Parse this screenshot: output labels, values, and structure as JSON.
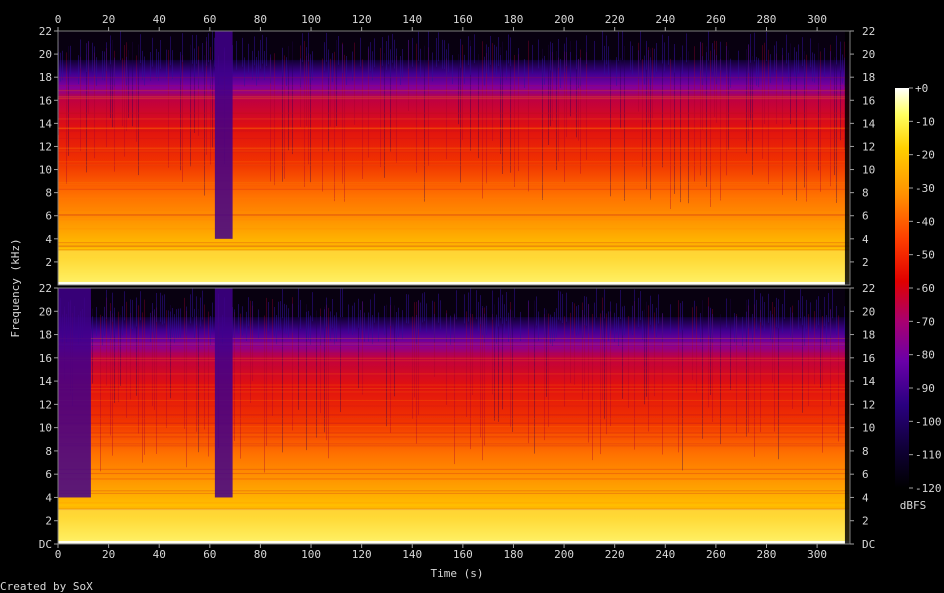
{
  "chart_data": {
    "type": "heatmap",
    "title": "",
    "xlabel": "Time (s)",
    "ylabel": "Frequency (kHz)",
    "credit": "Created by SoX",
    "x_range": [
      0,
      313
    ],
    "x_ticks": [
      0,
      20,
      40,
      60,
      80,
      100,
      120,
      140,
      160,
      180,
      200,
      220,
      240,
      260,
      280,
      300
    ],
    "channels": [
      {
        "y_range_khz": [
          0,
          22
        ],
        "y_tick_labels": [
          "2",
          "4",
          "6",
          "8",
          "10",
          "12",
          "14",
          "16",
          "18",
          "20",
          "22"
        ],
        "y_tick_values_khz": [
          2,
          4,
          6,
          8,
          10,
          12,
          14,
          16,
          18,
          20,
          22
        ],
        "spectral_ceiling_khz": 19.5,
        "quiet_segments_s": [
          [
            62,
            69
          ]
        ],
        "bright_low_band_khz": [
          0,
          3
        ]
      },
      {
        "y_range_khz": [
          0,
          22
        ],
        "y_tick_labels": [
          "DC",
          "2",
          "4",
          "6",
          "8",
          "10",
          "12",
          "14",
          "16",
          "18",
          "20",
          "22"
        ],
        "y_tick_values_khz": [
          0,
          2,
          4,
          6,
          8,
          10,
          12,
          14,
          16,
          18,
          20,
          22
        ],
        "spectral_ceiling_khz": 19.5,
        "quiet_segments_s": [
          [
            0,
            13
          ],
          [
            62,
            69
          ]
        ],
        "bright_low_band_khz": [
          0,
          3
        ]
      }
    ],
    "colorbar": {
      "label": "dBFS",
      "range": [
        -120,
        0
      ],
      "ticks": [
        0,
        -10,
        -20,
        -30,
        -40,
        -50,
        -60,
        -70,
        -80,
        -90,
        -100,
        -110,
        -120
      ],
      "tick_labels": [
        "+0",
        "-10",
        "-20",
        "-30",
        "-40",
        "-50",
        "-60",
        "-70",
        "-80",
        "-90",
        "-100",
        "-110",
        "-120"
      ],
      "stops": [
        {
          "db": -120,
          "color": "#000000"
        },
        {
          "db": -108,
          "color": "#100038"
        },
        {
          "db": -95,
          "color": "#2a0080"
        },
        {
          "db": -82,
          "color": "#6a00a8"
        },
        {
          "db": -70,
          "color": "#a80070"
        },
        {
          "db": -58,
          "color": "#e00000"
        },
        {
          "db": -45,
          "color": "#ff4000"
        },
        {
          "db": -32,
          "color": "#ff9000"
        },
        {
          "db": -18,
          "color": "#ffd000"
        },
        {
          "db": -8,
          "color": "#ffff60"
        },
        {
          "db": 0,
          "color": "#ffffff"
        }
      ]
    }
  }
}
